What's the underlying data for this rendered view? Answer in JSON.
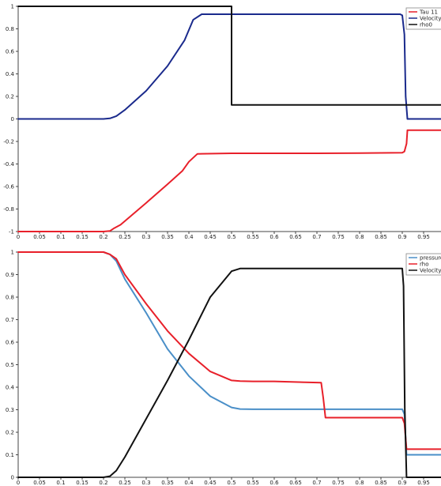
{
  "chart_data": [
    {
      "type": "line",
      "title": "",
      "xlabel": "",
      "ylabel": "",
      "xlim": [
        0,
        1
      ],
      "ylim": [
        -1,
        1
      ],
      "grid": false,
      "legend": "top-right",
      "x_ticks": [
        "0",
        "0.05",
        "0.1",
        "0.15",
        "0.2",
        "0.25",
        "0.3",
        "0.35",
        "0.4",
        "0.45",
        "0.5",
        "0.55",
        "0.6",
        "0.65",
        "0.7",
        "0.75",
        "0.8",
        "0.85",
        "0.9",
        "0.95"
      ],
      "y_ticks": [
        "1",
        "0.8",
        "0.6",
        "0.4",
        "0.2",
        "0",
        "-0.2",
        "-0.4",
        "-0.6",
        "-0.8",
        "-1"
      ],
      "series": [
        {
          "name": "Tau 11",
          "color": "#e8202a",
          "x": [
            0,
            0.2,
            0.215,
            0.225,
            0.24,
            0.3,
            0.35,
            0.385,
            0.4,
            0.42,
            0.5,
            0.6,
            0.7,
            0.8,
            0.9,
            0.905,
            0.91,
            0.912,
            1.0
          ],
          "y": [
            -1,
            -1,
            -0.995,
            -0.97,
            -0.94,
            -0.745,
            -0.58,
            -0.46,
            -0.38,
            -0.31,
            -0.305,
            -0.305,
            -0.305,
            -0.303,
            -0.3,
            -0.29,
            -0.22,
            -0.1,
            -0.1
          ]
        },
        {
          "name": "Velocity u",
          "color": "#1a2a8c",
          "x": [
            0,
            0.2,
            0.215,
            0.23,
            0.25,
            0.3,
            0.35,
            0.39,
            0.41,
            0.43,
            0.5,
            0.6,
            0.7,
            0.8,
            0.895,
            0.9,
            0.905,
            0.908,
            0.912,
            1.0
          ],
          "y": [
            0,
            0,
            0.005,
            0.025,
            0.08,
            0.25,
            0.47,
            0.7,
            0.88,
            0.93,
            0.93,
            0.93,
            0.93,
            0.93,
            0.93,
            0.92,
            0.75,
            0.2,
            0,
            0
          ]
        },
        {
          "name": "rho0",
          "color": "#111111",
          "x": [
            0,
            0.5,
            0.5,
            1.0
          ],
          "y": [
            1,
            1,
            0.125,
            0.125
          ]
        }
      ]
    },
    {
      "type": "line",
      "title": "",
      "xlabel": "",
      "ylabel": "",
      "xlim": [
        0,
        1
      ],
      "ylim": [
        0,
        1
      ],
      "grid": false,
      "legend": "top-right",
      "x_ticks": [
        "0",
        "0.05",
        "0.1",
        "0.15",
        "0.2",
        "0.25",
        "0.3",
        "0.35",
        "0.4",
        "0.45",
        "0.5",
        "0.55",
        "0.6",
        "0.65",
        "0.7",
        "0.75",
        "0.8",
        "0.85",
        "0.9",
        "0.95"
      ],
      "y_ticks": [
        "1",
        "0.9",
        "0.8",
        "0.7",
        "0.6",
        "0.5",
        "0.4",
        "0.3",
        "0.2",
        "0.1",
        "0"
      ],
      "series": [
        {
          "name": "pressure",
          "color": "#4a8fc8",
          "x": [
            0,
            0.2,
            0.215,
            0.23,
            0.25,
            0.3,
            0.35,
            0.4,
            0.45,
            0.5,
            0.52,
            0.55,
            0.6,
            0.7,
            0.8,
            0.9,
            0.905,
            0.91,
            1.0
          ],
          "y": [
            1,
            1,
            0.99,
            0.96,
            0.88,
            0.73,
            0.57,
            0.45,
            0.36,
            0.31,
            0.303,
            0.302,
            0.302,
            0.302,
            0.302,
            0.302,
            0.28,
            0.1,
            0.1
          ]
        },
        {
          "name": "rho",
          "color": "#e8202a",
          "x": [
            0,
            0.2,
            0.215,
            0.23,
            0.25,
            0.3,
            0.35,
            0.4,
            0.45,
            0.5,
            0.52,
            0.55,
            0.6,
            0.71,
            0.715,
            0.72,
            0.8,
            0.9,
            0.905,
            0.91,
            1.0
          ],
          "y": [
            1,
            1,
            0.99,
            0.97,
            0.9,
            0.77,
            0.65,
            0.55,
            0.47,
            0.43,
            0.427,
            0.426,
            0.426,
            0.42,
            0.35,
            0.265,
            0.265,
            0.265,
            0.24,
            0.125,
            0.125
          ]
        },
        {
          "name": "Velocity",
          "color": "#111111",
          "x": [
            0,
            0.2,
            0.215,
            0.23,
            0.25,
            0.3,
            0.35,
            0.4,
            0.45,
            0.5,
            0.52,
            0.55,
            0.6,
            0.7,
            0.8,
            0.9,
            0.903,
            0.906,
            0.91,
            1.0
          ],
          "y": [
            0,
            0,
            0.005,
            0.03,
            0.09,
            0.26,
            0.43,
            0.61,
            0.8,
            0.915,
            0.927,
            0.927,
            0.927,
            0.927,
            0.927,
            0.927,
            0.85,
            0.3,
            0,
            0
          ]
        }
      ]
    }
  ]
}
